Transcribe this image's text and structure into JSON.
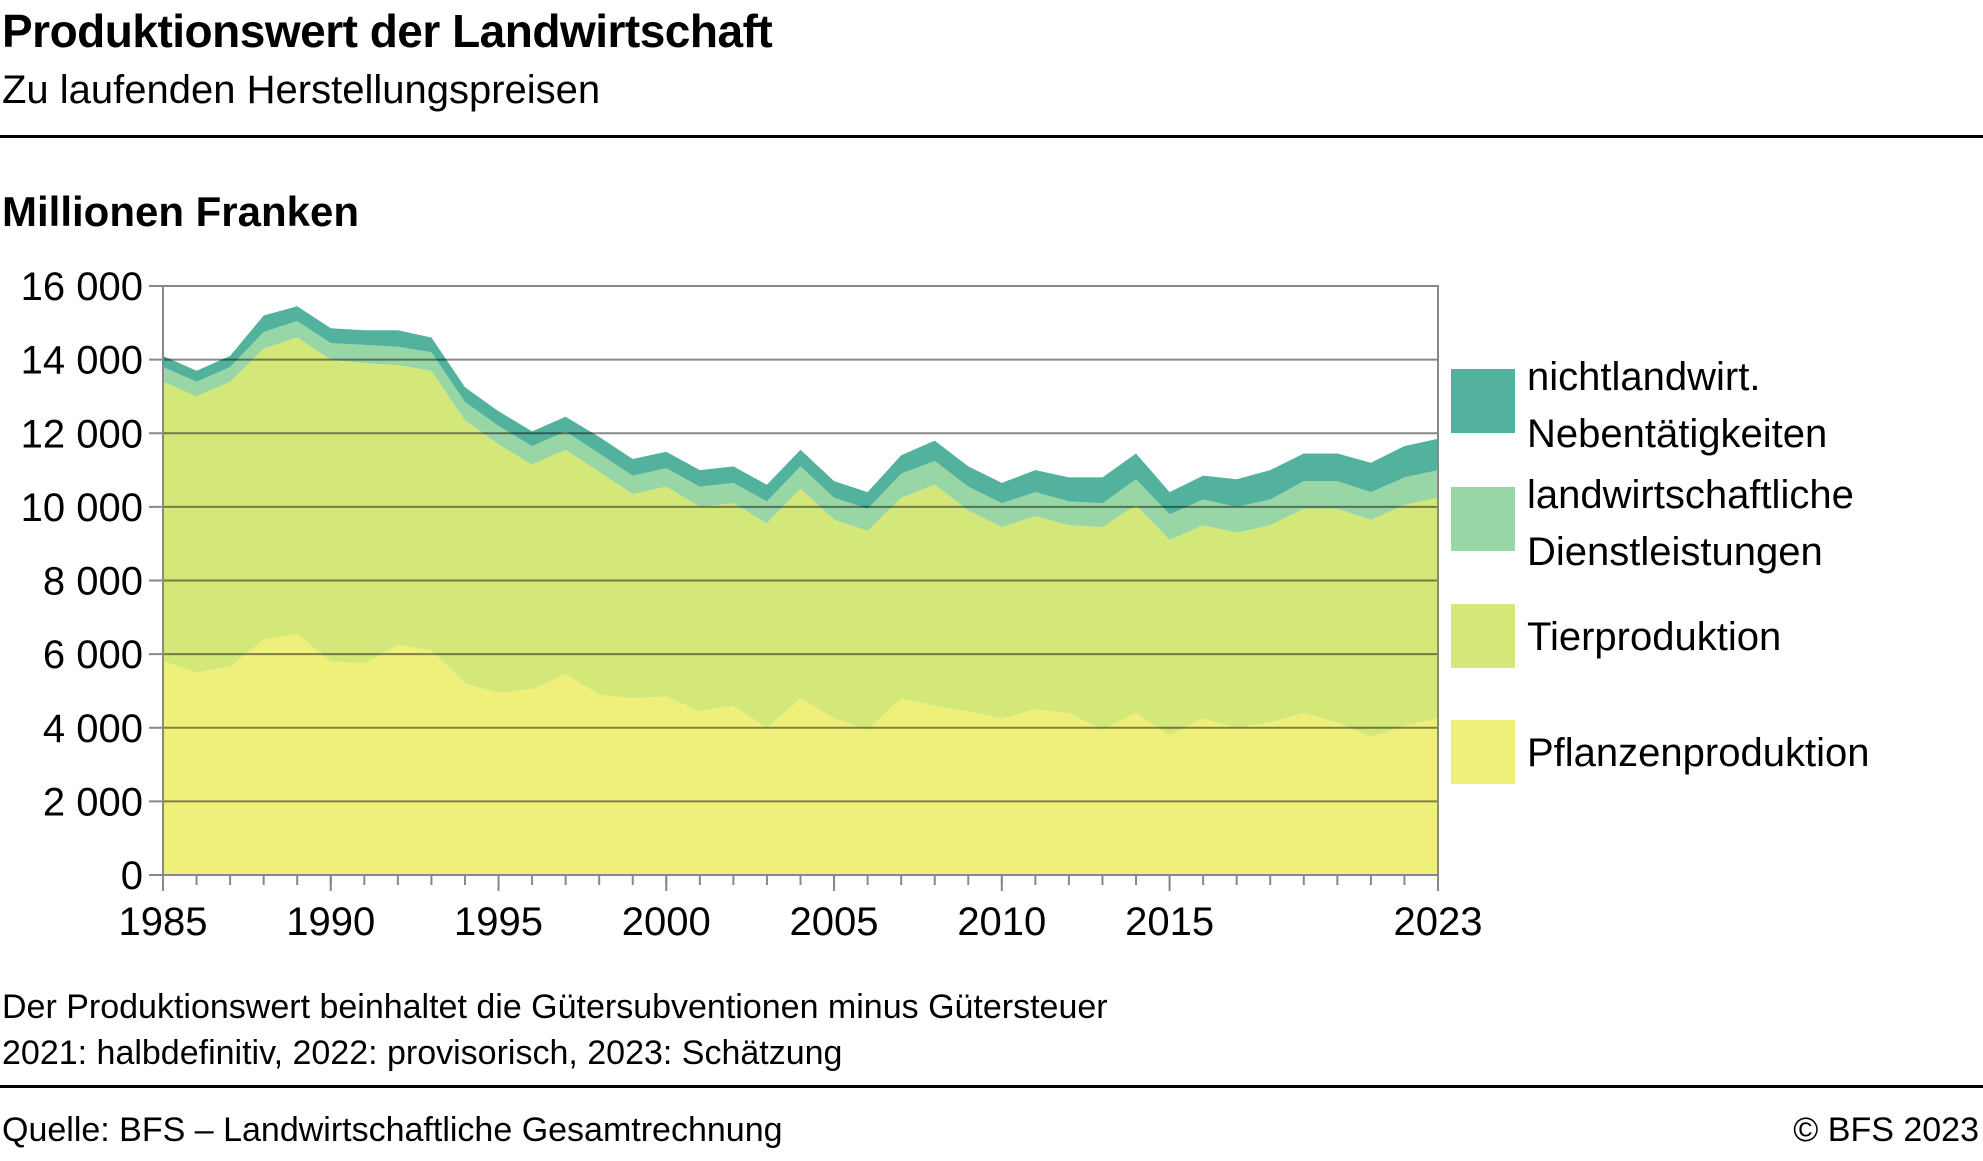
{
  "header": {
    "title": "Produktionswert der Landwirtschaft",
    "subtitle": "Zu laufenden Herstellungspreisen",
    "unit_label": "Millionen Franken"
  },
  "footer": {
    "note_1": "Der Produktionswert beinhaltet die Gütersubventionen minus Gütersteuer",
    "note_2": "2021: halbdefinitiv, 2022: provisorisch, 2023: Schätzung",
    "source": "Quelle: BFS – Landwirtschaftliche Gesamtrechnung",
    "copyright": "© BFS 2023"
  },
  "chart_data": {
    "type": "area",
    "stacked": true,
    "x": [
      1985,
      1986,
      1987,
      1988,
      1989,
      1990,
      1991,
      1992,
      1993,
      1994,
      1995,
      1996,
      1997,
      1998,
      1999,
      2000,
      2001,
      2002,
      2003,
      2004,
      2005,
      2006,
      2007,
      2008,
      2009,
      2010,
      2011,
      2012,
      2013,
      2014,
      2015,
      2016,
      2017,
      2018,
      2019,
      2020,
      2021,
      2022,
      2023
    ],
    "ylim": [
      0,
      16000
    ],
    "y_ticks": [
      0,
      2000,
      4000,
      6000,
      8000,
      10000,
      12000,
      14000,
      16000
    ],
    "y_tick_labels": [
      "0",
      "2 000",
      "4 000",
      "6 000",
      "8 000",
      "10 000",
      "12 000",
      "14 000",
      "16 000"
    ],
    "x_ticks": [
      1985,
      1990,
      1995,
      2000,
      2005,
      2010,
      2015,
      2023
    ],
    "x_tick_labels": [
      "1985",
      "1990",
      "1995",
      "2000",
      "2005",
      "2010",
      "2015",
      "2023"
    ],
    "grid": "horizontal",
    "legend_position": "right",
    "series": [
      {
        "name": "Pflanzenproduktion",
        "color": "#eef07a",
        "values": [
          5800,
          5500,
          5650,
          6400,
          6550,
          5800,
          5750,
          6250,
          6100,
          5200,
          4950,
          5050,
          5450,
          4900,
          4800,
          4850,
          4450,
          4600,
          4000,
          4800,
          4250,
          3950,
          4800,
          4600,
          4450,
          4250,
          4500,
          4400,
          3950,
          4400,
          3800,
          4250,
          4000,
          4150,
          4400,
          4150,
          3750,
          4050,
          4250
        ]
      },
      {
        "name": "Tierproduktion",
        "color": "#d3e879",
        "values": [
          7600,
          7500,
          7750,
          7900,
          8050,
          8200,
          8150,
          7600,
          7600,
          7150,
          6750,
          6100,
          6100,
          6050,
          5550,
          5700,
          5550,
          5500,
          5550,
          5700,
          5400,
          5400,
          5450,
          6000,
          5450,
          5200,
          5250,
          5100,
          5500,
          5650,
          5300,
          5250,
          5300,
          5350,
          5550,
          5800,
          5900,
          6000,
          6000
        ]
      },
      {
        "name": "landwirtschaftliche Dienstleistungen",
        "color": "#98d6a5",
        "values": [
          400,
          400,
          400,
          450,
          450,
          450,
          500,
          500,
          500,
          500,
          500,
          500,
          500,
          500,
          500,
          500,
          550,
          550,
          600,
          600,
          600,
          600,
          650,
          650,
          650,
          650,
          650,
          650,
          650,
          700,
          700,
          700,
          700,
          700,
          750,
          750,
          750,
          750,
          750
        ]
      },
      {
        "name": "nichtlandwirt. Nebentätigkeiten",
        "color": "#52b29e",
        "values": [
          300,
          300,
          300,
          450,
          400,
          400,
          400,
          450,
          400,
          400,
          400,
          400,
          400,
          450,
          450,
          450,
          450,
          450,
          450,
          450,
          450,
          450,
          500,
          550,
          550,
          550,
          600,
          650,
          700,
          700,
          600,
          650,
          750,
          800,
          750,
          750,
          800,
          850,
          850
        ]
      }
    ],
    "legend": [
      {
        "line1": "nichtlandwirt.",
        "line2": "Nebentätigkeiten"
      },
      {
        "line1": "landwirtschaftliche",
        "line2": "Dienstleistungen"
      },
      {
        "line1": "Tierproduktion",
        "line2": ""
      },
      {
        "line1": "Pflanzenproduktion",
        "line2": ""
      }
    ]
  }
}
